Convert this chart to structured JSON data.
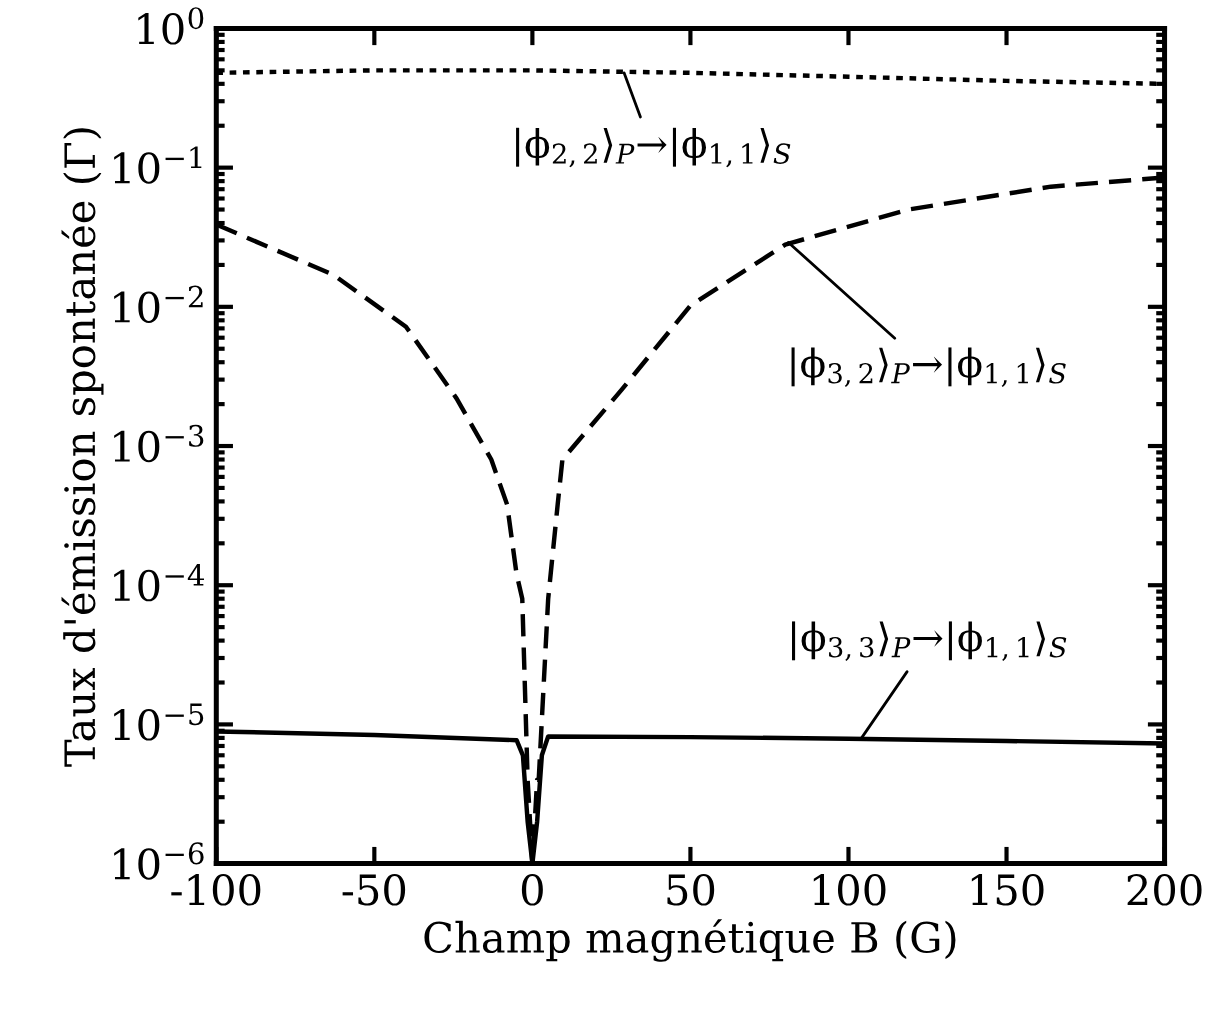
{
  "chart_data": {
    "type": "line",
    "xlabel": "Champ magnétique B (G)",
    "ylabel": "Taux d'émission spontanée (Γ)",
    "log": "y",
    "xlim": [
      -100,
      200
    ],
    "xticks": [
      {
        "value": -100,
        "label": "-100"
      },
      {
        "value": -50,
        "label": "-50"
      },
      0,
      50,
      100,
      150,
      200
    ],
    "ylim": [
      1e-06,
      1
    ],
    "yticks": [
      {
        "value": 1e-06,
        "label": "10$^{−6}$"
      },
      {
        "value": 1e-05,
        "label": "10$^{−5}$"
      },
      {
        "value": 0.0001,
        "label": "10$^{−4}$"
      },
      {
        "value": 0.001,
        "label": "10$^{−3}$"
      },
      {
        "value": 0.01,
        "label": "10$^{−2}$"
      },
      {
        "value": 0.1,
        "label": "10$^{−1}$"
      },
      {
        "value": 1,
        "label": "10$^{0}$"
      }
    ],
    "series": [
      {
        "color": "#000000",
        "line_style": "dotted",
        "x": [
          -100,
          -50,
          0,
          50,
          100,
          150,
          200
        ],
        "values": [
          0.48,
          0.5,
          0.5,
          0.48,
          0.45,
          0.42,
          0.4
        ]
      },
      {
        "color": "#000000",
        "line_style": "dashed",
        "x": [
          -100,
          -63,
          -40,
          -24,
          -13,
          -8,
          -5,
          -3.2,
          -1.5,
          0,
          1.5,
          2,
          5,
          8,
          9.5,
          28,
          50,
          80,
          119,
          164,
          200
        ],
        "values": [
          0.039,
          0.017,
          0.0072,
          0.0022,
          0.0008,
          0.00038,
          0.00012,
          8e-05,
          4e-06,
          1e-06,
          4e-06,
          4e-06,
          8e-05,
          0.00038,
          0.0008,
          0.0025,
          0.0102,
          0.028,
          0.05,
          0.073,
          0.085
        ]
      },
      {
        "color": "#000000",
        "line_style": "solid",
        "x": [
          -100,
          -50,
          -5,
          -3,
          -1.5,
          0,
          1.5,
          3,
          5,
          50,
          100,
          150,
          200
        ],
        "values": [
          8.9e-06,
          8.4e-06,
          7.7e-06,
          6e-06,
          2e-06,
          1e-06,
          2e-06,
          6e-06,
          8.2e-06,
          8.1e-06,
          7.9e-06,
          7.6e-06,
          7.3e-06
        ]
      }
    ],
    "annotations": [
      {
        "text": "|ϕ$_{2,2}$⟩$_{P}$→|ϕ$_{1,1}$⟩$_{S}$",
        "x": 29,
        "y": 0.48
      },
      {
        "text": "|ϕ$_{3,2}$⟩$_{P}$→|ϕ$_{1,1}$⟩$_{S}$",
        "x": 81,
        "y": 0.029
      },
      {
        "text": "|ϕ$_{3,3}$⟩$_{P}$→|ϕ$_{1,1}$⟩$_{S}$",
        "x": 104,
        "y": 7.9e-06
      }
    ]
  }
}
